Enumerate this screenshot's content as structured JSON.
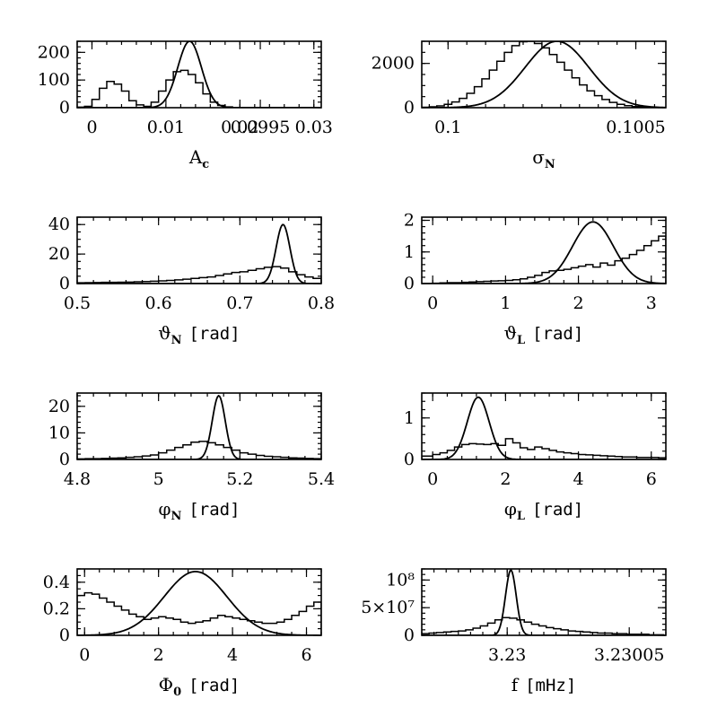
{
  "figure": "posterior histograms vs. gaussian approximations",
  "chart_data": [
    {
      "id": "Ac",
      "type": "histogram+line",
      "xlabel_main": "A",
      "xlabel_sub": "c",
      "xlabel_unit": "",
      "xlim": [
        -0.002,
        0.031
      ],
      "ylim": [
        0,
        240
      ],
      "xticks": [
        0,
        0.01,
        0.02,
        0.03
      ],
      "xtick_labels": [
        "0",
        "0.01",
        "0.02",
        "0.03"
      ],
      "yticks": [
        0,
        100,
        200
      ],
      "ytick_labels": [
        "0",
        "100",
        "200"
      ],
      "xminor": 0.002,
      "yminor": 20,
      "hist": {
        "x": [
          -0.002,
          -0.001,
          0.0,
          0.001,
          0.002,
          0.003,
          0.004,
          0.005,
          0.006,
          0.007,
          0.008,
          0.009,
          0.01,
          0.011,
          0.012,
          0.013,
          0.014,
          0.015,
          0.016,
          0.017,
          0.018,
          0.019,
          0.02,
          0.021,
          0.022,
          0.023,
          0.024,
          0.025,
          0.026,
          0.027,
          0.028,
          0.029,
          0.03,
          0.031
        ],
        "y": [
          2,
          5,
          30,
          70,
          95,
          85,
          60,
          25,
          10,
          5,
          20,
          60,
          100,
          130,
          135,
          120,
          90,
          50,
          20,
          8,
          3,
          1,
          0,
          0,
          0,
          0,
          0,
          0,
          0,
          0,
          0,
          0,
          0
        ]
      },
      "curve": {
        "type": "gaussian",
        "mu": 0.0132,
        "sigma": 0.0016,
        "amp": 240
      }
    },
    {
      "id": "sigmaN",
      "type": "histogram+line",
      "xlabel_main": "σ",
      "xlabel_sub": "N",
      "xlabel_unit": "",
      "xlim": [
        0.09993,
        0.10058
      ],
      "ylim": [
        0,
        3000
      ],
      "xticks": [
        0.0995,
        0.1,
        0.1005
      ],
      "xtick_labels": [
        "0.0995",
        "0.1",
        "0.1005"
      ],
      "yticks": [
        0,
        2000
      ],
      "ytick_labels": [
        "0",
        "2000"
      ],
      "xminor": 5e-05,
      "yminor": 500,
      "hist": {
        "x": [
          0.09993,
          0.09995,
          0.09997,
          0.09999,
          0.10001,
          0.10003,
          0.10005,
          0.10007,
          0.10009,
          0.10011,
          0.10013,
          0.10015,
          0.10017,
          0.10019,
          0.10021,
          0.10023,
          0.10025,
          0.10027,
          0.10029,
          0.10031,
          0.10033,
          0.10035,
          0.10037,
          0.10039,
          0.10041,
          0.10043,
          0.10045,
          0.10047,
          0.10049,
          0.10051,
          0.10053,
          0.10055,
          0.10057
        ],
        "y": [
          20,
          40,
          80,
          150,
          260,
          420,
          650,
          950,
          1300,
          1700,
          2100,
          2500,
          2800,
          2980,
          3000,
          2900,
          2700,
          2400,
          2050,
          1700,
          1350,
          1030,
          760,
          540,
          370,
          240,
          150,
          90,
          50,
          28,
          15,
          8
        ]
      },
      "curve": {
        "type": "gaussian",
        "mu": 0.10029,
        "sigma": 8.5e-05,
        "amp": 3000
      }
    },
    {
      "id": "thetaN",
      "type": "histogram+line",
      "xlabel_main": "ϑ",
      "xlabel_sub": "N",
      "xlabel_unit": "[rad]",
      "xlim": [
        0.5,
        0.8
      ],
      "ylim": [
        0,
        45
      ],
      "xticks": [
        0.5,
        0.6,
        0.7,
        0.8
      ],
      "xtick_labels": [
        "0.5",
        "0.6",
        "0.7",
        "0.8"
      ],
      "yticks": [
        0,
        20,
        40
      ],
      "ytick_labels": [
        "0",
        "20",
        "40"
      ],
      "xminor": 0.02,
      "yminor": 5,
      "hist": {
        "x": [
          0.5,
          0.51,
          0.52,
          0.53,
          0.54,
          0.55,
          0.56,
          0.57,
          0.58,
          0.59,
          0.6,
          0.61,
          0.62,
          0.63,
          0.64,
          0.65,
          0.66,
          0.67,
          0.68,
          0.69,
          0.7,
          0.71,
          0.72,
          0.73,
          0.74,
          0.75,
          0.76,
          0.77,
          0.78,
          0.79,
          0.8
        ],
        "y": [
          0.5,
          0.6,
          0.7,
          0.8,
          0.8,
          0.9,
          1.0,
          1.2,
          1.4,
          1.6,
          1.8,
          2.1,
          2.5,
          3.0,
          3.5,
          4.0,
          4.5,
          5.5,
          6.5,
          7.5,
          8.0,
          9.0,
          10.0,
          11.0,
          11.5,
          10.5,
          8.0,
          6.0,
          4.5,
          3.5
        ]
      },
      "curve": {
        "type": "gaussian",
        "mu": 0.753,
        "sigma": 0.0085,
        "amp": 40
      }
    },
    {
      "id": "thetaL",
      "type": "histogram+line",
      "xlabel_main": "ϑ",
      "xlabel_sub": "L",
      "xlabel_unit": "[rad]",
      "xlim": [
        -0.15,
        3.2
      ],
      "ylim": [
        0,
        2.1
      ],
      "xticks": [
        0,
        1,
        2,
        3
      ],
      "xtick_labels": [
        "0",
        "1",
        "2",
        "3"
      ],
      "yticks": [
        0,
        1,
        2
      ],
      "ytick_labels": [
        "0",
        "1",
        "2"
      ],
      "xminor": 0.2,
      "yminor": 0.2,
      "hist": {
        "x": [
          -0.15,
          0.0,
          0.1,
          0.2,
          0.3,
          0.4,
          0.5,
          0.6,
          0.7,
          0.8,
          0.9,
          1.0,
          1.1,
          1.2,
          1.3,
          1.4,
          1.5,
          1.6,
          1.7,
          1.8,
          1.9,
          2.0,
          2.1,
          2.2,
          2.3,
          2.4,
          2.5,
          2.6,
          2.7,
          2.8,
          2.9,
          3.0,
          3.1,
          3.2
        ],
        "y": [
          0,
          0.01,
          0.02,
          0.03,
          0.03,
          0.04,
          0.05,
          0.06,
          0.07,
          0.08,
          0.09,
          0.1,
          0.12,
          0.15,
          0.2,
          0.26,
          0.35,
          0.4,
          0.42,
          0.45,
          0.5,
          0.55,
          0.6,
          0.52,
          0.65,
          0.58,
          0.72,
          0.8,
          0.92,
          1.05,
          1.2,
          1.35,
          1.5
        ]
      },
      "curve": {
        "type": "gaussian",
        "mu": 2.2,
        "sigma": 0.28,
        "amp": 1.95
      }
    },
    {
      "id": "phiN",
      "type": "histogram+line",
      "xlabel_main": "φ",
      "xlabel_sub": "N",
      "xlabel_unit": "[rad]",
      "xlim": [
        4.8,
        5.4
      ],
      "ylim": [
        0,
        25
      ],
      "xticks": [
        4.8,
        5.0,
        5.2,
        5.4
      ],
      "xtick_labels": [
        "4.8",
        "5",
        "5.2",
        "5.4"
      ],
      "yticks": [
        0,
        10,
        20
      ],
      "ytick_labels": [
        "0",
        "10",
        "20"
      ],
      "xminor": 0.04,
      "yminor": 2,
      "hist": {
        "x": [
          4.8,
          4.82,
          4.84,
          4.86,
          4.88,
          4.9,
          4.92,
          4.94,
          4.96,
          4.98,
          5.0,
          5.02,
          5.04,
          5.06,
          5.08,
          5.1,
          5.12,
          5.14,
          5.16,
          5.18,
          5.2,
          5.22,
          5.24,
          5.26,
          5.28,
          5.3,
          5.32,
          5.34,
          5.36,
          5.38,
          5.4
        ],
        "y": [
          0.2,
          0.3,
          0.3,
          0.4,
          0.5,
          0.6,
          0.8,
          1.0,
          1.3,
          1.7,
          2.5,
          3.5,
          4.5,
          5.5,
          6.5,
          6.8,
          6.3,
          5.5,
          4.5,
          3.5,
          2.5,
          2.0,
          1.5,
          1.2,
          1.0,
          0.8,
          0.6,
          0.5,
          0.4,
          0.3
        ]
      },
      "curve": {
        "type": "gaussian",
        "mu": 5.148,
        "sigma": 0.016,
        "amp": 24
      }
    },
    {
      "id": "phiL",
      "type": "histogram+line",
      "xlabel_main": "φ",
      "xlabel_sub": "L",
      "xlabel_unit": "[rad]",
      "xlim": [
        -0.3,
        6.4
      ],
      "ylim": [
        0,
        1.6
      ],
      "xticks": [
        0,
        2,
        4,
        6
      ],
      "xtick_labels": [
        "0",
        "2",
        "4",
        "6"
      ],
      "yticks": [
        0,
        1
      ],
      "ytick_labels": [
        "0",
        "1"
      ],
      "xminor": 0.4,
      "yminor": 0.2,
      "hist": {
        "x": [
          -0.3,
          0.0,
          0.2,
          0.4,
          0.6,
          0.8,
          1.0,
          1.2,
          1.4,
          1.6,
          1.8,
          2.0,
          2.2,
          2.4,
          2.6,
          2.8,
          3.0,
          3.2,
          3.4,
          3.6,
          3.8,
          4.0,
          4.2,
          4.4,
          4.6,
          4.8,
          5.0,
          5.2,
          5.4,
          5.6,
          5.8,
          6.0,
          6.2,
          6.4
        ],
        "y": [
          0.08,
          0.12,
          0.16,
          0.22,
          0.3,
          0.36,
          0.38,
          0.37,
          0.36,
          0.38,
          0.34,
          0.5,
          0.4,
          0.28,
          0.24,
          0.3,
          0.26,
          0.22,
          0.18,
          0.16,
          0.14,
          0.12,
          0.11,
          0.1,
          0.09,
          0.08,
          0.07,
          0.06,
          0.06,
          0.05,
          0.05,
          0.05,
          0.04
        ]
      },
      "curve": {
        "type": "gaussian",
        "mu": 1.25,
        "sigma": 0.3,
        "amp": 1.5
      }
    },
    {
      "id": "Phi0",
      "type": "histogram+line",
      "xlabel_main": "Φ",
      "xlabel_sub": "0",
      "xlabel_unit": "[rad]",
      "xlim": [
        -0.2,
        6.4
      ],
      "ylim": [
        0,
        0.5
      ],
      "xticks": [
        0,
        2,
        4,
        6
      ],
      "xtick_labels": [
        "0",
        "2",
        "4",
        "6"
      ],
      "yticks": [
        0,
        0.2,
        0.4
      ],
      "ytick_labels": [
        "0",
        "0.2",
        "0.4"
      ],
      "xminor": 0.4,
      "yminor": 0.05,
      "hist": {
        "x": [
          -0.2,
          0.0,
          0.2,
          0.4,
          0.6,
          0.8,
          1.0,
          1.2,
          1.4,
          1.6,
          1.8,
          2.0,
          2.2,
          2.4,
          2.6,
          2.8,
          3.0,
          3.2,
          3.4,
          3.6,
          3.8,
          4.0,
          4.2,
          4.4,
          4.6,
          4.8,
          5.0,
          5.2,
          5.4,
          5.6,
          5.8,
          6.0,
          6.2,
          6.4
        ],
        "y": [
          0.3,
          0.32,
          0.31,
          0.28,
          0.25,
          0.22,
          0.19,
          0.16,
          0.14,
          0.12,
          0.13,
          0.14,
          0.13,
          0.12,
          0.1,
          0.09,
          0.1,
          0.11,
          0.13,
          0.15,
          0.14,
          0.13,
          0.12,
          0.11,
          0.1,
          0.09,
          0.09,
          0.1,
          0.12,
          0.15,
          0.18,
          0.22,
          0.25
        ]
      },
      "curve": {
        "type": "gaussian",
        "mu": 3.0,
        "sigma": 0.85,
        "amp": 0.48
      }
    },
    {
      "id": "f",
      "type": "histogram+line",
      "xlabel_main": "f",
      "xlabel_sub": "",
      "xlabel_unit": "[mHz]",
      "xlim": [
        3.229965,
        3.230065
      ],
      "ylim": [
        0,
        120000000
      ],
      "xticks": [
        3.23,
        3.23005
      ],
      "xtick_labels": [
        "3.23",
        "3.23005"
      ],
      "yticks": [
        0,
        50000000,
        100000000
      ],
      "ytick_labels": [
        "0",
        "5×10⁷",
        "10⁸"
      ],
      "xminor": 5e-06,
      "yminor": 10000000,
      "hist": {
        "x": [
          3.229965,
          3.229968,
          3.229971,
          3.229974,
          3.229977,
          3.22998,
          3.229983,
          3.229986,
          3.229989,
          3.229992,
          3.229995,
          3.229998,
          3.230001,
          3.230004,
          3.230007,
          3.23001,
          3.230013,
          3.230016,
          3.230019,
          3.230022,
          3.230025,
          3.230028,
          3.230031,
          3.230034,
          3.230037,
          3.23004,
          3.230043,
          3.230046,
          3.230049,
          3.230052,
          3.230055,
          3.230058,
          3.230061,
          3.230064
        ],
        "y": [
          3000000,
          4000000,
          5000000,
          6000000,
          7000000,
          8000000,
          10000000,
          13000000,
          17000000,
          22000000,
          28000000,
          32000000,
          31000000,
          28000000,
          24000000,
          20000000,
          17000000,
          14000000,
          12000000,
          10000000,
          8000000,
          7000000,
          6000000,
          5000000,
          4000000,
          4000000,
          3000000,
          3000000,
          2000000,
          2000000,
          2000000,
          1000000,
          1000000
        ]
      },
      "curve": {
        "type": "gaussian",
        "mu": 3.2300015,
        "sigma": 2.2e-06,
        "amp": 118000000
      }
    }
  ]
}
